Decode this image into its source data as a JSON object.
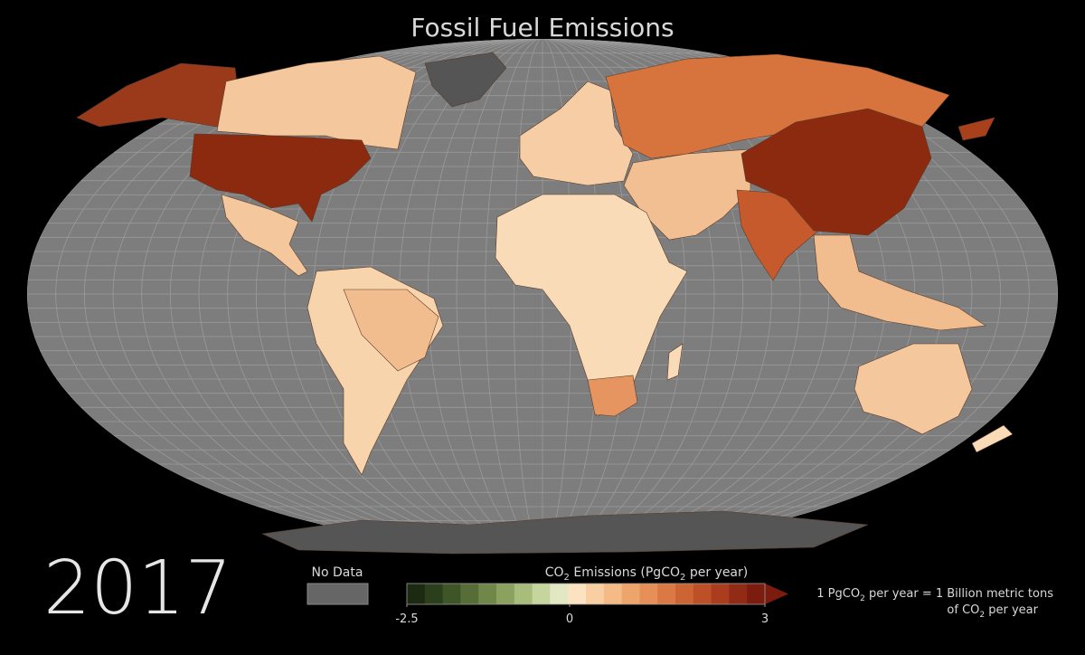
{
  "header": {
    "title": "Fossil Fuel Emissions",
    "year": "2017"
  },
  "legend": {
    "no_data": "No Data",
    "title_parts": [
      "CO",
      "2",
      " Emissions  (PgCO",
      "2",
      " per year)"
    ],
    "colorbar": {
      "min": -2.5,
      "max": 3,
      "ticks": [
        -2.5,
        0,
        3
      ],
      "colors": [
        "#1d2a12",
        "#2c3f1c",
        "#3e5528",
        "#566d37",
        "#6f8748",
        "#8aa25d",
        "#a8bd7b",
        "#c6d59e",
        "#e3e8c4",
        "#fbe3c2",
        "#f8cfa3",
        "#f4bb86",
        "#eea56c",
        "#e68f56",
        "#db7944",
        "#cd6434",
        "#bd5027",
        "#a93d1d",
        "#922b15",
        "#7c1c0e"
      ]
    }
  },
  "note": {
    "line1_parts": [
      "1 PgCO",
      "2",
      " per year = 1 Billion metric tons"
    ],
    "line2_parts": [
      "of CO",
      "2",
      " per year"
    ]
  }
}
